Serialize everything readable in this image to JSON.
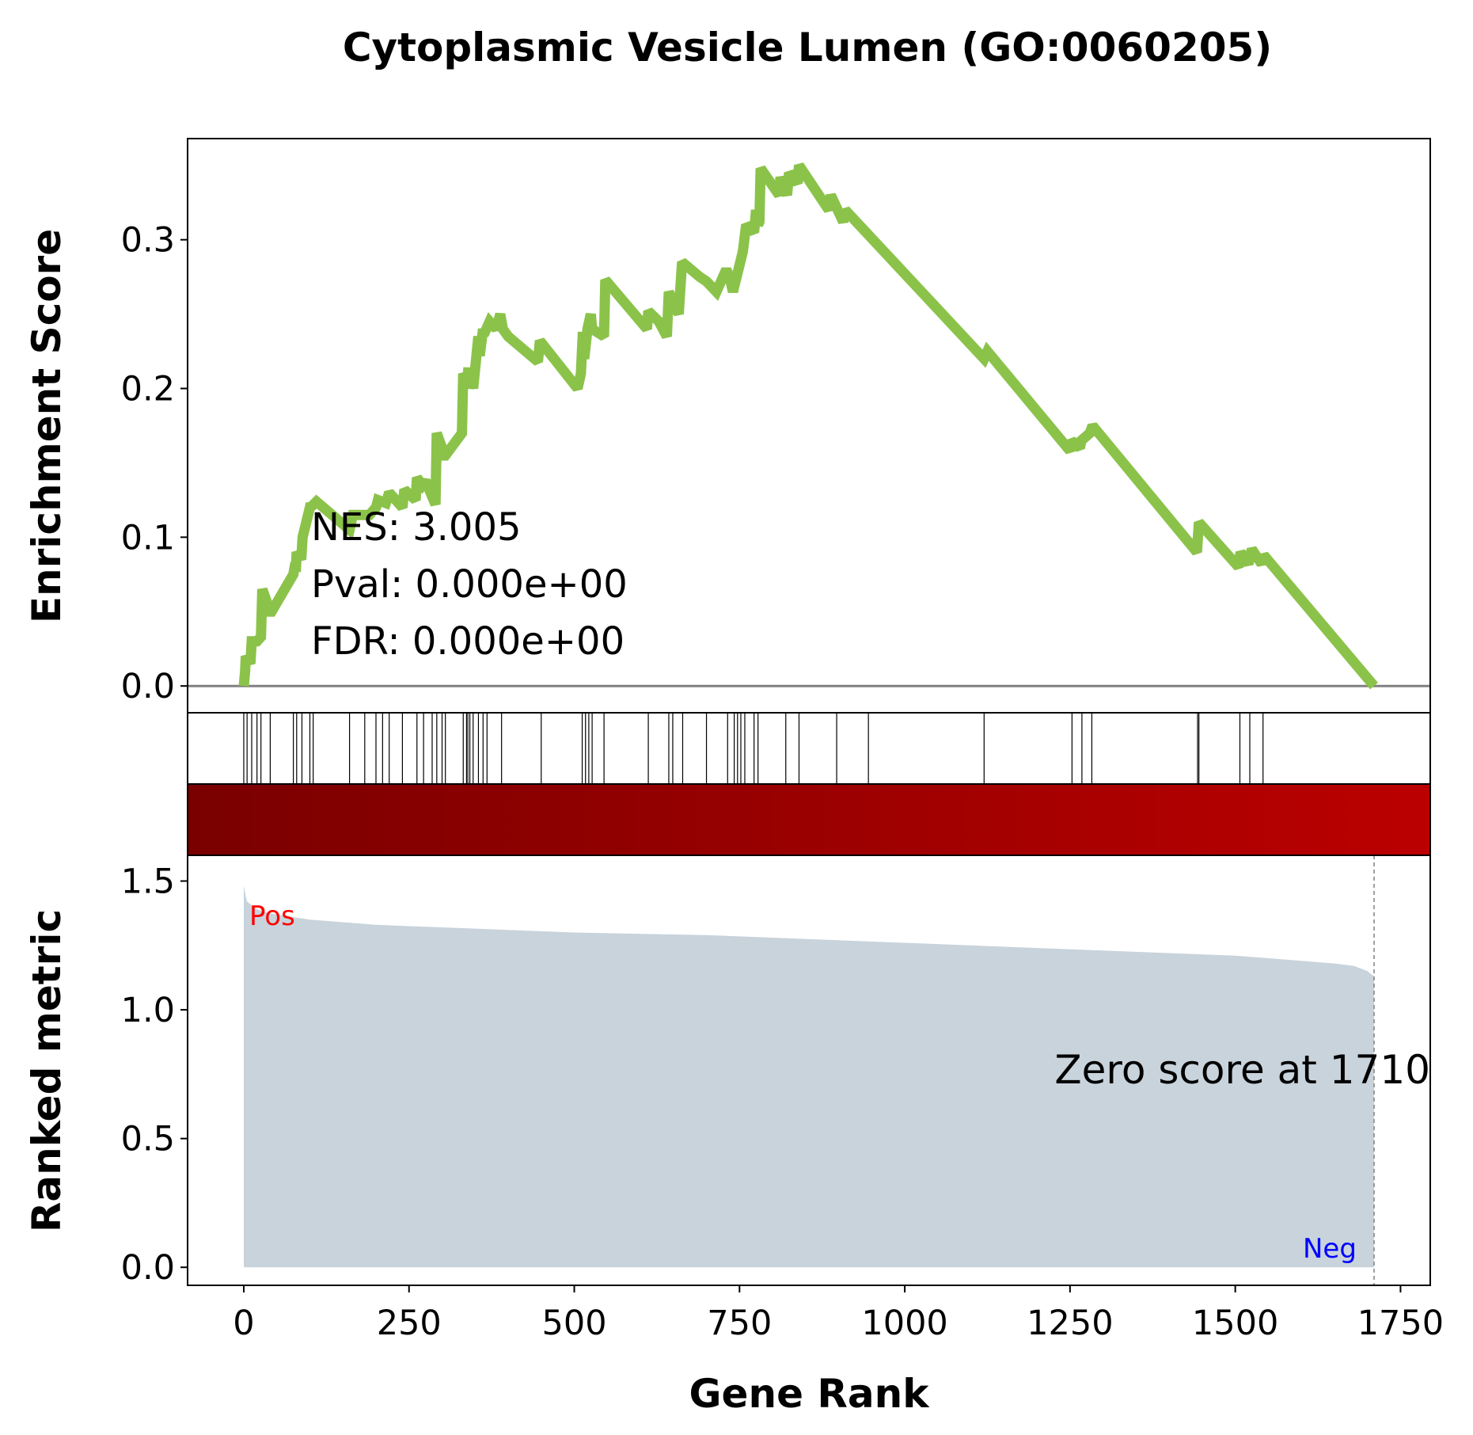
{
  "chart_data": {
    "type": "line",
    "title": "Cytoplasmic Vesicle Lumen (GO:0060205)",
    "xlabel": "Gene Rank",
    "xlim": [
      -85,
      1795
    ],
    "xticks": [
      0,
      250,
      500,
      750,
      1000,
      1250,
      1500,
      1750
    ],
    "colors": {
      "es_line": "#8bc34a",
      "metric_fill": "#c8d3dc",
      "zero_line": "#808080",
      "heat_start": "#7a0000",
      "heat_end": "#bb0000",
      "pos": "#ff0000",
      "neg": "#0000ff"
    },
    "enrichment": {
      "ylabel": "Enrichment Score",
      "ylim": [
        -0.018,
        0.368
      ],
      "yticks": [
        "0.0",
        "0.1",
        "0.2",
        "0.3"
      ],
      "ytick_values": [
        0.0,
        0.1,
        0.2,
        0.3
      ],
      "x": [
        0,
        2,
        3,
        10,
        12,
        20,
        26,
        28,
        40,
        42,
        75,
        77,
        79,
        80,
        87,
        89,
        100,
        101,
        110,
        160,
        165,
        190,
        200,
        203,
        215,
        220,
        240,
        243,
        260,
        262,
        270,
        275,
        290,
        292,
        300,
        304,
        305,
        330,
        332,
        338,
        340,
        341,
        345,
        347,
        355,
        357,
        362,
        363,
        372,
        382,
        388,
        392,
        400,
        445,
        448,
        505,
        510,
        513,
        515,
        520,
        525,
        527,
        545,
        547,
        610,
        612,
        628,
        640,
        643,
        658,
        663,
        690,
        700,
        715,
        730,
        735,
        740,
        755,
        760,
        772,
        775,
        778,
        780,
        782,
        810,
        812,
        822,
        825,
        838,
        840,
        885,
        888,
        907,
        910,
        1120,
        1125,
        1250,
        1252,
        1265,
        1267,
        1280,
        1284,
        1442,
        1445,
        1505,
        1508,
        1520,
        1525,
        1540,
        1543,
        1710
      ],
      "y": [
        0.0,
        0.01,
        0.02,
        0.015,
        0.03,
        0.03,
        0.033,
        0.065,
        0.05,
        0.05,
        0.075,
        0.08,
        0.08,
        0.09,
        0.085,
        0.1,
        0.12,
        0.12,
        0.124,
        0.105,
        0.115,
        0.115,
        0.12,
        0.125,
        0.123,
        0.13,
        0.12,
        0.132,
        0.125,
        0.14,
        0.135,
        0.138,
        0.122,
        0.17,
        0.16,
        0.155,
        0.155,
        0.17,
        0.21,
        0.205,
        0.214,
        0.2,
        0.21,
        0.2,
        0.235,
        0.222,
        0.24,
        0.236,
        0.245,
        0.24,
        0.25,
        0.24,
        0.235,
        0.218,
        0.232,
        0.2,
        0.21,
        0.238,
        0.22,
        0.24,
        0.25,
        0.24,
        0.235,
        0.273,
        0.24,
        0.252,
        0.245,
        0.235,
        0.265,
        0.25,
        0.285,
        0.275,
        0.272,
        0.265,
        0.28,
        0.275,
        0.265,
        0.292,
        0.31,
        0.305,
        0.32,
        0.31,
        0.312,
        0.348,
        0.33,
        0.342,
        0.33,
        0.345,
        0.338,
        0.35,
        0.32,
        0.33,
        0.312,
        0.32,
        0.22,
        0.225,
        0.158,
        0.165,
        0.16,
        0.165,
        0.17,
        0.175,
        0.09,
        0.11,
        0.08,
        0.09,
        0.082,
        0.092,
        0.082,
        0.088,
        0.0
      ]
    },
    "stats": {
      "nes": "NES: 3.005",
      "pval": "Pval: 0.000e+00",
      "fdr": "FDR: 0.000e+00"
    },
    "hits": [
      0,
      5,
      12,
      20,
      26,
      40,
      75,
      80,
      88,
      100,
      105,
      160,
      183,
      200,
      210,
      220,
      240,
      262,
      272,
      285,
      292,
      300,
      305,
      332,
      337,
      339,
      342,
      347,
      355,
      362,
      368,
      390,
      450,
      512,
      517,
      522,
      527,
      545,
      612,
      643,
      649,
      664,
      700,
      732,
      742,
      747,
      752,
      758,
      772,
      778,
      820,
      840,
      897,
      945,
      1120,
      1253,
      1268,
      1283,
      1443,
      1445,
      1507,
      1522,
      1542
    ],
    "metric": {
      "ylabel": "Ranked metric",
      "ylim": [
        -0.07,
        1.6
      ],
      "yticks": [
        "0.0",
        "0.5",
        "1.0",
        "1.5"
      ],
      "ytick_values": [
        0.0,
        0.5,
        1.0,
        1.5
      ],
      "x": [
        0,
        1,
        3,
        5,
        10,
        15,
        20,
        30,
        50,
        100,
        200,
        300,
        500,
        700,
        900,
        1100,
        1300,
        1500,
        1600,
        1650,
        1680,
        1700,
        1705,
        1710
      ],
      "y": [
        1.48,
        1.47,
        1.44,
        1.42,
        1.41,
        1.4,
        1.39,
        1.38,
        1.37,
        1.35,
        1.33,
        1.32,
        1.3,
        1.29,
        1.27,
        1.25,
        1.23,
        1.21,
        1.19,
        1.18,
        1.17,
        1.15,
        1.14,
        1.13
      ],
      "pos_label": "Pos",
      "neg_label": "Neg",
      "zero_label": "Zero score at 1710",
      "zero_rank": 1710
    }
  }
}
